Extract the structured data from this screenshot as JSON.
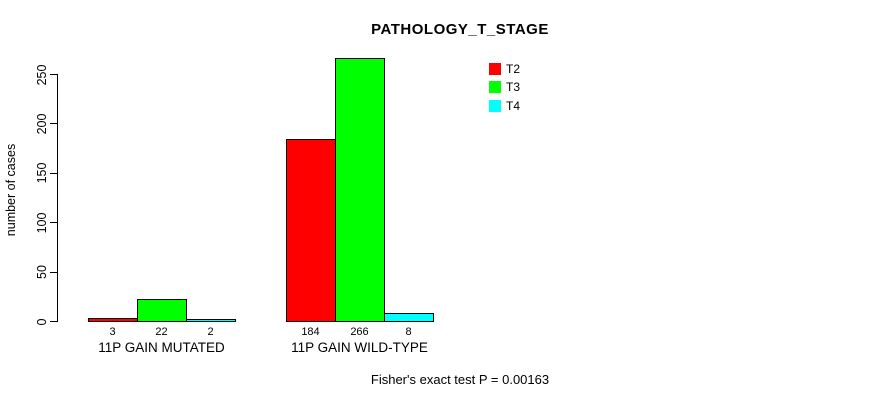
{
  "chart_data": {
    "type": "bar",
    "title": "PATHOLOGY_T_STAGE",
    "xlabel": "",
    "ylabel": "number of cases",
    "categories": [
      "11P GAIN MUTATED",
      "11P GAIN WILD-TYPE"
    ],
    "series": [
      {
        "name": "T2",
        "color": "#ff0000",
        "values": [
          3,
          184
        ]
      },
      {
        "name": "T3",
        "color": "#00ff00",
        "values": [
          22,
          266
        ]
      },
      {
        "name": "T4",
        "color": "#00ffff",
        "values": [
          2,
          8
        ]
      }
    ],
    "yticks": [
      0,
      50,
      100,
      150,
      200,
      250
    ],
    "ylim": [
      0,
      250
    ],
    "grid": false,
    "legend_position": "top-right",
    "bar_border_color": "#000000",
    "value_labels_shown": true,
    "annotation": "Fisher's exact test P = 0.00163"
  },
  "colors": {
    "background": "#ffffff",
    "axis": "#000000",
    "text": "#000000"
  }
}
